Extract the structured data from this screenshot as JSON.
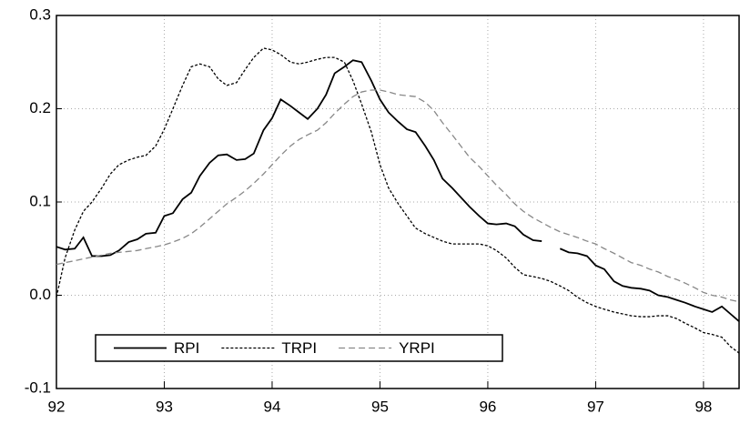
{
  "chart_data": {
    "type": "line",
    "x": [
      92,
      92.08,
      92.17,
      92.25,
      92.33,
      92.42,
      92.5,
      92.58,
      92.67,
      92.75,
      92.83,
      92.92,
      93,
      93.08,
      93.17,
      93.25,
      93.33,
      93.42,
      93.5,
      93.58,
      93.67,
      93.75,
      93.83,
      93.92,
      94,
      94.08,
      94.17,
      94.25,
      94.33,
      94.42,
      94.5,
      94.58,
      94.67,
      94.75,
      94.83,
      94.92,
      95,
      95.08,
      95.17,
      95.25,
      95.33,
      95.42,
      95.5,
      95.58,
      95.67,
      95.75,
      95.83,
      95.92,
      96,
      96.08,
      96.17,
      96.25,
      96.33,
      96.42,
      96.5,
      96.58,
      96.67,
      96.75,
      96.83,
      96.92,
      97,
      97.08,
      97.17,
      97.25,
      97.33,
      97.42,
      97.5,
      97.58,
      97.67,
      97.75,
      97.83,
      97.92,
      98,
      98.08,
      98.17,
      98.25,
      98.33
    ],
    "series": [
      {
        "name": "RPI",
        "color": "#000000",
        "style": "solid",
        "values": [
          0.052,
          0.049,
          0.05,
          0.062,
          0.042,
          0.042,
          0.043,
          0.048,
          0.057,
          0.06,
          0.066,
          0.067,
          0.085,
          0.088,
          0.103,
          0.11,
          0.128,
          0.142,
          0.15,
          0.151,
          0.145,
          0.146,
          0.152,
          0.177,
          0.19,
          0.21,
          0.203,
          0.196,
          0.189,
          0.2,
          0.215,
          0.238,
          0.245,
          0.252,
          0.25,
          0.23,
          0.21,
          0.196,
          0.186,
          0.178,
          0.175,
          0.16,
          0.145,
          0.125,
          0.115,
          0.105,
          0.095,
          0.085,
          0.077,
          0.076,
          0.077,
          0.074,
          0.065,
          0.059,
          0.058,
          null,
          0.05,
          0.046,
          0.045,
          0.042,
          0.032,
          0.028,
          0.015,
          0.01,
          0.008,
          0.007,
          0.005,
          0.0,
          -0.002,
          -0.005,
          -0.008,
          -0.012,
          -0.015,
          -0.018,
          -0.012,
          -0.02,
          -0.028
        ]
      },
      {
        "name": "TRPI",
        "color": "#000000",
        "style": "dotted",
        "values": [
          -0.002,
          0.04,
          0.07,
          0.09,
          0.1,
          0.115,
          0.13,
          0.14,
          0.145,
          0.148,
          0.15,
          0.16,
          0.178,
          0.2,
          0.225,
          0.245,
          0.248,
          0.245,
          0.232,
          0.225,
          0.228,
          0.242,
          0.255,
          0.265,
          0.263,
          0.258,
          0.25,
          0.248,
          0.25,
          0.253,
          0.255,
          0.255,
          0.25,
          0.23,
          0.205,
          0.175,
          0.14,
          0.115,
          0.098,
          0.085,
          0.072,
          0.066,
          0.062,
          0.058,
          0.055,
          0.055,
          0.055,
          0.055,
          0.053,
          0.048,
          0.04,
          0.03,
          0.022,
          0.02,
          0.018,
          0.015,
          0.01,
          0.005,
          -0.002,
          -0.008,
          -0.012,
          -0.015,
          -0.018,
          -0.02,
          -0.022,
          -0.023,
          -0.023,
          -0.022,
          -0.022,
          -0.025,
          -0.03,
          -0.035,
          -0.04,
          -0.042,
          -0.045,
          -0.055,
          -0.062
        ]
      },
      {
        "name": "YRPI",
        "color": "#888888",
        "style": "dashed",
        "values": [
          0.033,
          0.035,
          0.037,
          0.039,
          0.041,
          0.043,
          0.045,
          0.046,
          0.047,
          0.048,
          0.05,
          0.052,
          0.054,
          0.057,
          0.061,
          0.066,
          0.073,
          0.082,
          0.09,
          0.098,
          0.105,
          0.112,
          0.12,
          0.13,
          0.14,
          0.15,
          0.16,
          0.167,
          0.172,
          0.177,
          0.185,
          0.195,
          0.205,
          0.213,
          0.218,
          0.22,
          0.22,
          0.218,
          0.215,
          0.214,
          0.213,
          0.207,
          0.198,
          0.185,
          0.172,
          0.16,
          0.148,
          0.138,
          0.128,
          0.118,
          0.108,
          0.098,
          0.09,
          0.083,
          0.078,
          0.073,
          0.068,
          0.065,
          0.062,
          0.058,
          0.055,
          0.05,
          0.045,
          0.04,
          0.035,
          0.032,
          0.028,
          0.025,
          0.02,
          0.017,
          0.013,
          0.008,
          0.003,
          0.0,
          -0.002,
          -0.005,
          -0.007
        ]
      }
    ],
    "xlim": [
      92,
      98.33
    ],
    "xticks": [
      92,
      93,
      94,
      95,
      96,
      97,
      98
    ],
    "ylim": [
      -0.1,
      0.3
    ],
    "yticks": [
      -0.1,
      {
        "value": 0,
        "label": "0.0"
      },
      0.1,
      0.2,
      0.3
    ],
    "grid": true,
    "legend": "lower left"
  }
}
